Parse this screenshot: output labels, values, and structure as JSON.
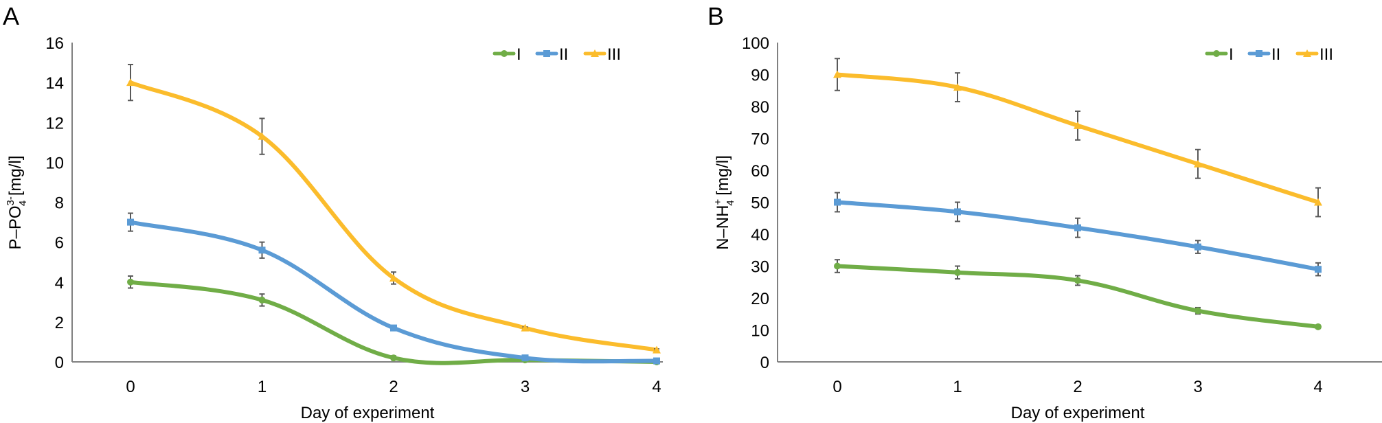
{
  "chart_data": [
    {
      "panel": "A",
      "type": "line",
      "smooth": true,
      "title": "",
      "xlabel": "Day of experiment",
      "ylabel": "P–PO4 3- [mg/l]",
      "ylabel_parts": {
        "base": "P–PO",
        "sub": "4",
        "sup": "3-",
        "unit": " [mg/l]"
      },
      "x": [
        0,
        1,
        2,
        3,
        4
      ],
      "x_tick_labels": [
        "0",
        "1",
        "2",
        "3",
        "4"
      ],
      "ylim": [
        0,
        16
      ],
      "y_ticks": [
        0,
        2,
        4,
        6,
        8,
        10,
        12,
        14,
        16
      ],
      "grid": false,
      "legend_position": "top-right",
      "series": [
        {
          "name": "I",
          "color": "#70ad47",
          "marker": "circle",
          "values": [
            4.0,
            3.1,
            0.2,
            0.1,
            0.0
          ],
          "errors": [
            0.3,
            0.3,
            0.1,
            0.0,
            0.0
          ]
        },
        {
          "name": "II",
          "color": "#5b9bd5",
          "marker": "square",
          "values": [
            7.0,
            5.6,
            1.7,
            0.2,
            0.05
          ],
          "errors": [
            0.45,
            0.4,
            0.1,
            0.05,
            0.0
          ]
        },
        {
          "name": "III",
          "color": "#fbbc2c",
          "marker": "triangle",
          "values": [
            14.0,
            11.3,
            4.2,
            1.7,
            0.6
          ],
          "errors": [
            0.9,
            0.9,
            0.3,
            0.05,
            0.05
          ]
        }
      ]
    },
    {
      "panel": "B",
      "type": "line",
      "smooth": true,
      "title": "",
      "xlabel": "Day of experiment",
      "ylabel": "N–NH4+ [mg/l]",
      "ylabel_parts": {
        "base": "N–NH",
        "sub": "4",
        "sup": "+",
        "unit": " [mg/l]"
      },
      "x": [
        0,
        1,
        2,
        3,
        4
      ],
      "x_tick_labels": [
        "0",
        "1",
        "2",
        "3",
        "4"
      ],
      "ylim": [
        0,
        100
      ],
      "y_ticks": [
        0,
        10,
        20,
        30,
        40,
        50,
        60,
        70,
        80,
        90,
        100
      ],
      "grid": false,
      "legend_position": "top-right",
      "series": [
        {
          "name": "I",
          "color": "#70ad47",
          "marker": "circle",
          "values": [
            30,
            28,
            25.5,
            16,
            11
          ],
          "errors": [
            2,
            2,
            1.5,
            1,
            0.5
          ]
        },
        {
          "name": "II",
          "color": "#5b9bd5",
          "marker": "square",
          "values": [
            50,
            47,
            42,
            36,
            29
          ],
          "errors": [
            3,
            3,
            3,
            2,
            2
          ]
        },
        {
          "name": "III",
          "color": "#fbbc2c",
          "marker": "triangle",
          "values": [
            90,
            86,
            74,
            62,
            50
          ],
          "errors": [
            5,
            4.5,
            4.5,
            4.5,
            4.5
          ]
        }
      ]
    }
  ],
  "error_bar_color": "#595959",
  "axis_color": "#808080"
}
